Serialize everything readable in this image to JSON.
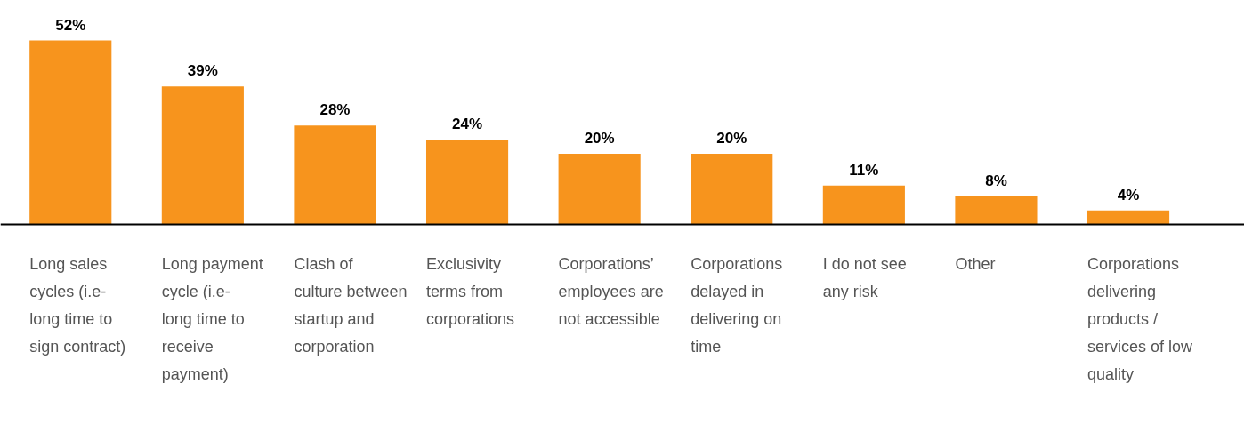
{
  "chart_data": {
    "type": "bar",
    "categories": [
      "Long sales cycles (i.e- long time to sign contract)",
      "Long payment cycle (i.e- long time to receive payment)",
      "Clash of culture between startup and corporation",
      "Exclusivity terms from corporations",
      "Corporations’ employees are not accessible",
      "Corporations delayed in delivering on time",
      "I do not see any risk",
      "Other",
      "Corporations delivering products / services of low quality"
    ],
    "values": [
      52,
      39,
      28,
      24,
      20,
      20,
      11,
      8,
      4
    ],
    "value_labels": [
      "52%",
      "39%",
      "28%",
      "24%",
      "20%",
      "20%",
      "11%",
      "8%",
      "4%"
    ],
    "color": "#f7941d",
    "grid": false
  }
}
